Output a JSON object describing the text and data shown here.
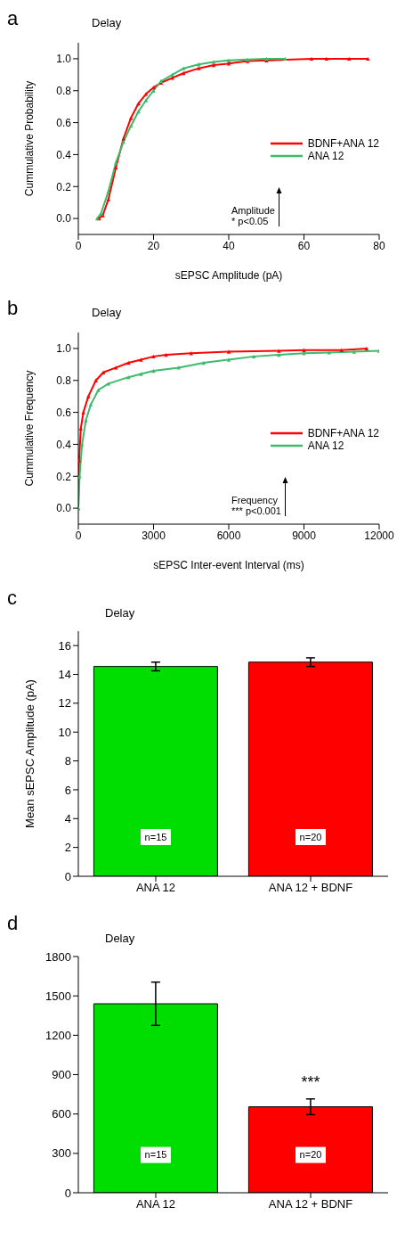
{
  "chart_data": [
    {
      "type": "line",
      "title": "Delay",
      "xlabel": "sEPSC Amplitude (pA)",
      "ylabel": "Cummulative Probability",
      "xlim": [
        0,
        80
      ],
      "xticks": [
        0,
        20,
        40,
        60,
        80
      ],
      "ylim": [
        -0.1,
        1.1
      ],
      "yticks": [
        {
          "value": 0,
          "label": "0.0"
        },
        {
          "value": 0.2,
          "label": "0.2"
        },
        {
          "value": 0.4,
          "label": "0.4"
        },
        {
          "value": 0.6,
          "label": "0.6"
        },
        {
          "value": 0.8,
          "label": "0.8"
        },
        {
          "value": 1,
          "label": "1.0"
        }
      ],
      "legend": "right",
      "marker": "triangle",
      "line_style": "solid",
      "annotations": [
        "a",
        "Amplitude",
        "* p<0.05"
      ],
      "series": [
        {
          "name": "BDNF+ANA 12",
          "color": "#ff0000",
          "x": [
            5.5,
            6.5,
            8,
            10,
            12,
            14,
            16,
            18,
            20,
            22,
            25,
            28,
            32,
            36,
            40,
            45,
            50,
            62,
            66,
            72,
            77
          ],
          "values": [
            0,
            0.02,
            0.12,
            0.32,
            0.5,
            0.63,
            0.72,
            0.78,
            0.82,
            0.85,
            0.88,
            0.91,
            0.94,
            0.96,
            0.97,
            0.985,
            0.99,
            1,
            1,
            1,
            1
          ]
        },
        {
          "name": "ANA 12",
          "color": "#3dba6b",
          "x": [
            5,
            6,
            8,
            10,
            12,
            14,
            16,
            18,
            20,
            22,
            25,
            28,
            32,
            36,
            40,
            45,
            50,
            55
          ],
          "values": [
            0,
            0.03,
            0.17,
            0.35,
            0.48,
            0.58,
            0.67,
            0.74,
            0.8,
            0.86,
            0.9,
            0.94,
            0.965,
            0.98,
            0.99,
            0.995,
            1,
            1
          ]
        }
      ]
    },
    {
      "type": "line",
      "title": "Delay",
      "xlabel": "sEPSC Inter-event Interval (ms)",
      "ylabel": "Cummulative Frequency",
      "xlim": [
        0,
        12000
      ],
      "xticks": [
        0,
        3000,
        6000,
        9000,
        12000
      ],
      "ylim": [
        -0.1,
        1.1
      ],
      "yticks": [
        {
          "value": 0,
          "label": "0.0"
        },
        {
          "value": 0.2,
          "label": "0.2"
        },
        {
          "value": 0.4,
          "label": "0.4"
        },
        {
          "value": 0.6,
          "label": "0.6"
        },
        {
          "value": 0.8,
          "label": "0.8"
        },
        {
          "value": 1,
          "label": "1.0"
        }
      ],
      "legend": "right",
      "marker": "triangle",
      "line_style": "solid",
      "annotations": [
        "b",
        "Frequency",
        "*** p<0.001"
      ],
      "series": [
        {
          "name": "BDNF+ANA 12",
          "color": "#ff0000",
          "x": [
            0,
            30,
            100,
            200,
            400,
            700,
            1000,
            1500,
            2000,
            2500,
            3000,
            3500,
            4500,
            6000,
            8000,
            9000,
            10500,
            11500
          ],
          "values": [
            0,
            0.3,
            0.5,
            0.6,
            0.7,
            0.8,
            0.85,
            0.88,
            0.91,
            0.93,
            0.95,
            0.96,
            0.97,
            0.98,
            0.985,
            0.99,
            0.99,
            1
          ]
        },
        {
          "name": "ANA 12",
          "color": "#3dba6b",
          "x": [
            0,
            50,
            150,
            300,
            500,
            800,
            1200,
            2000,
            2500,
            3000,
            4000,
            5000,
            6000,
            7000,
            8000,
            9000,
            10000,
            11000,
            12000
          ],
          "values": [
            0,
            0.2,
            0.4,
            0.55,
            0.65,
            0.74,
            0.78,
            0.82,
            0.84,
            0.86,
            0.88,
            0.91,
            0.93,
            0.95,
            0.96,
            0.97,
            0.975,
            0.98,
            0.985
          ]
        }
      ]
    },
    {
      "type": "bar",
      "title": "Delay",
      "ylabel": "Mean sEPSC Amplitude (pA)",
      "categories": [
        "ANA 12",
        "ANA 12 + BDNF"
      ],
      "values": [
        14.55,
        14.85
      ],
      "errors": [
        0.3,
        0.3
      ],
      "colors": [
        "#00dd00",
        "#ff0000"
      ],
      "ylim": [
        0,
        17
      ],
      "yticks": [
        0,
        2,
        4,
        6,
        8,
        10,
        12,
        14,
        16
      ],
      "annotations": [
        "c",
        "n=15",
        "n=20"
      ]
    },
    {
      "type": "bar",
      "title": "Delay",
      "categories": [
        "ANA 12",
        "ANA 12 + BDNF"
      ],
      "values": [
        1440,
        655
      ],
      "errors": [
        165,
        60
      ],
      "colors": [
        "#00dd00",
        "#ff0000"
      ],
      "ylim": [
        0,
        1800
      ],
      "yticks": [
        0,
        300,
        600,
        900,
        1200,
        1500,
        1800
      ],
      "annotations": [
        "d",
        "n=15",
        "n=20",
        "***"
      ]
    }
  ]
}
